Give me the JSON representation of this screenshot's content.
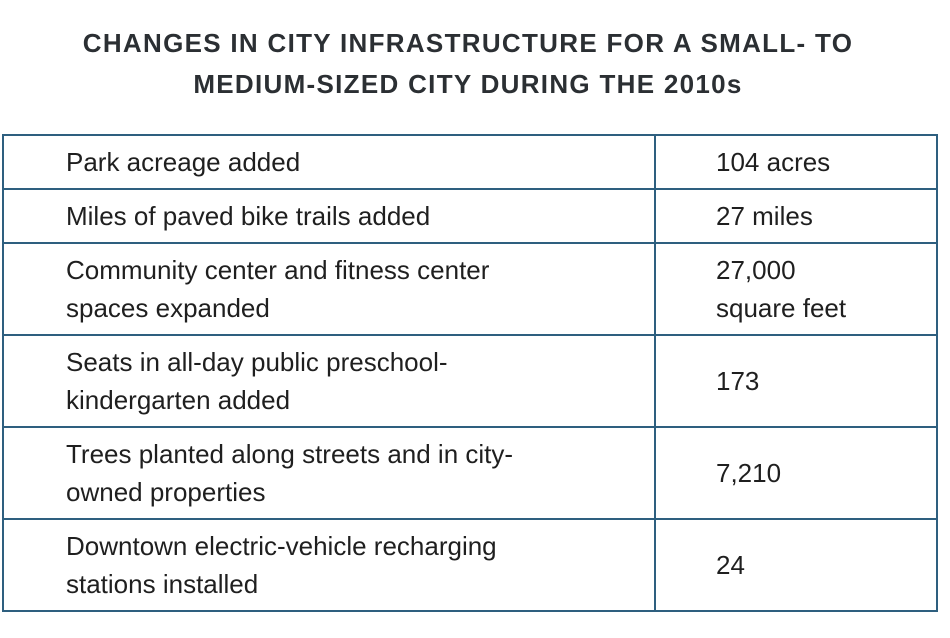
{
  "title": {
    "line1": "CHANGES IN CITY INFRASTRUCTURE FOR A SMALL- TO",
    "line2": "MEDIUM-SIZED CITY DURING THE 2010s"
  },
  "rows": [
    {
      "label": [
        "Park acreage added"
      ],
      "value": [
        "104 acres"
      ]
    },
    {
      "label": [
        "Miles of paved bike trails added"
      ],
      "value": [
        "27 miles"
      ]
    },
    {
      "label": [
        "Community center and fitness center",
        "spaces expanded"
      ],
      "value": [
        "27,000",
        "square feet"
      ]
    },
    {
      "label": [
        "Seats in all-day public preschool-",
        "kindergarten added"
      ],
      "value": [
        "173"
      ]
    },
    {
      "label": [
        "Trees planted along streets and in city-",
        "owned properties"
      ],
      "value": [
        "7,210"
      ]
    },
    {
      "label": [
        "Downtown electric-vehicle recharging",
        "stations installed"
      ],
      "value": [
        "24"
      ]
    }
  ]
}
